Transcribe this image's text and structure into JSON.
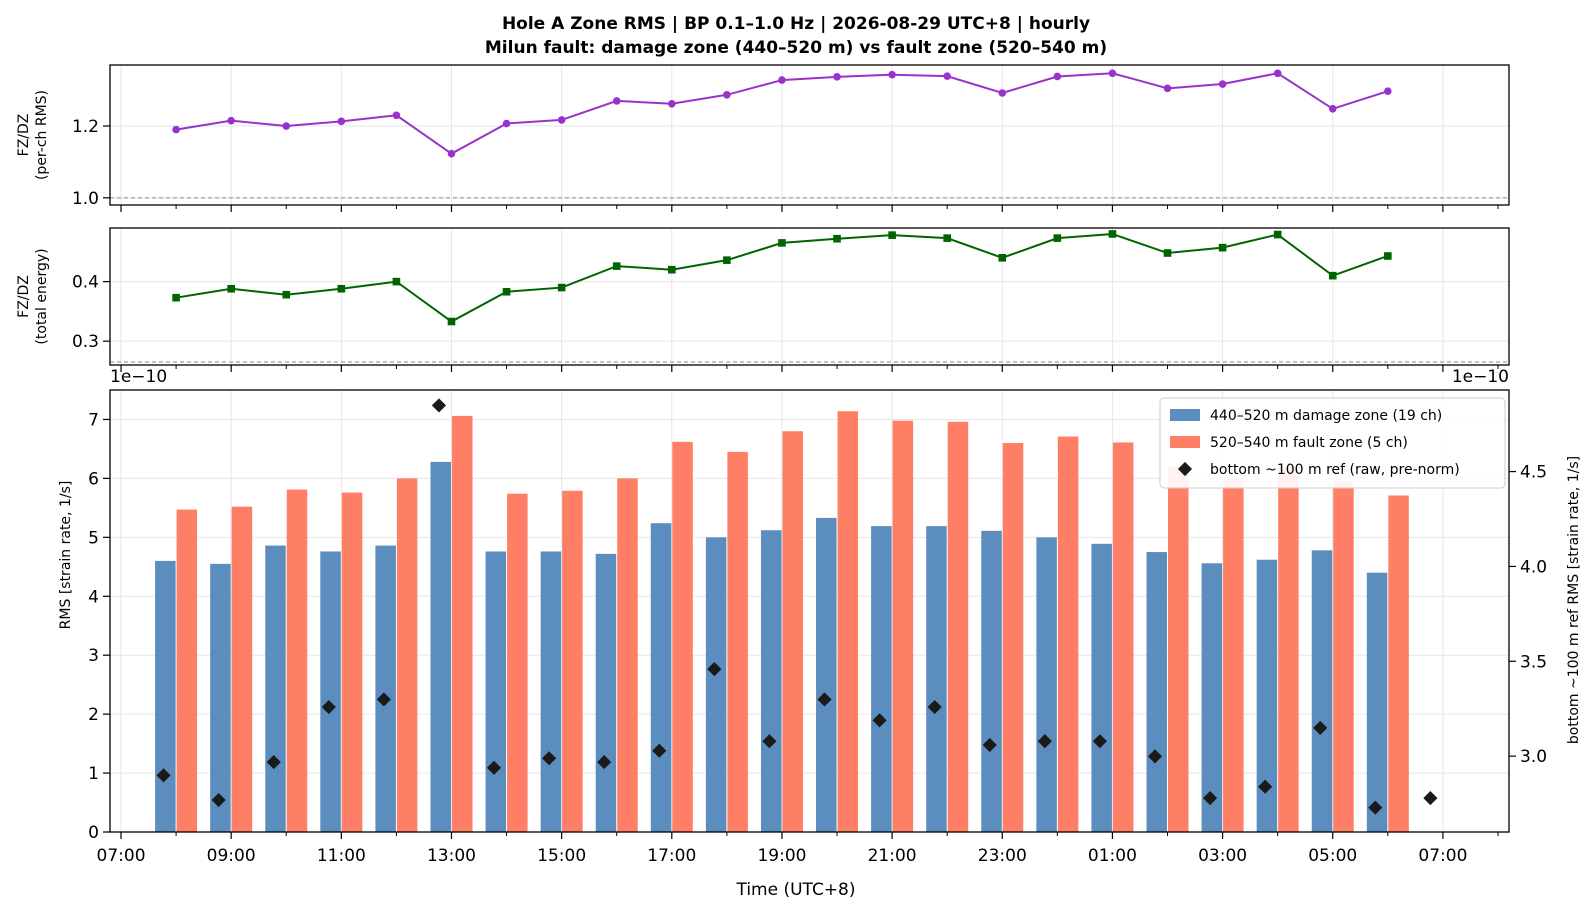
{
  "title_line1": "Hole A Zone RMS  |  BP 0.1–1.0 Hz  |  2026-08-29 UTC+8  |  hourly",
  "title_line2": "Milun fault: damage zone (440–520 m) vs fault zone (520–540 m)",
  "chart_data": [
    {
      "type": "line",
      "ylabel": [
        "FZ/DZ",
        "(per-ch RMS)"
      ],
      "x_hours": [
        8,
        9,
        10,
        11,
        12,
        13,
        14,
        15,
        16,
        17,
        18,
        19,
        20,
        21,
        22,
        23,
        24,
        25,
        26,
        27,
        28,
        29,
        30
      ],
      "values": [
        1.19,
        1.215,
        1.2,
        1.213,
        1.23,
        1.123,
        1.207,
        1.217,
        1.27,
        1.262,
        1.287,
        1.328,
        1.337,
        1.343,
        1.339,
        1.292,
        1.338,
        1.347,
        1.305,
        1.317,
        1.347,
        1.248,
        1.297
      ],
      "ylim": [
        0.98,
        1.37
      ],
      "yticks": [
        1.0,
        1.2
      ],
      "yticks_labels": [
        "1.0",
        "1.2"
      ],
      "reference_line": 1.0,
      "color": "#9932CC",
      "marker": "circle",
      "grid": true
    },
    {
      "type": "line",
      "ylabel": [
        "FZ/DZ",
        "(total energy)"
      ],
      "x_hours": [
        8,
        9,
        10,
        11,
        12,
        13,
        14,
        15,
        16,
        17,
        18,
        19,
        20,
        21,
        22,
        23,
        24,
        25,
        26,
        27,
        28,
        29,
        30
      ],
      "values": [
        0.373,
        0.388,
        0.378,
        0.388,
        0.4,
        0.333,
        0.383,
        0.39,
        0.426,
        0.42,
        0.436,
        0.465,
        0.472,
        0.478,
        0.473,
        0.44,
        0.473,
        0.48,
        0.448,
        0.457,
        0.479,
        0.41,
        0.443
      ],
      "ylim": [
        0.26,
        0.49
      ],
      "yticks": [
        0.3,
        0.4
      ],
      "yticks_labels": [
        "0.3",
        "0.4"
      ],
      "reference_line": 0.265,
      "color": "#006400",
      "marker": "square",
      "grid": true
    },
    {
      "type": "bar",
      "xlabel": "Time (UTC+8)",
      "ylabel": "RMS  [strain rate, 1/s]",
      "ylabel_right": "bottom ~100 m ref RMS  [strain rate, 1/s]",
      "offset_label_left": "1e−10",
      "offset_label_right": "1e−10",
      "x_hours": [
        8,
        9,
        10,
        11,
        12,
        13,
        14,
        15,
        16,
        17,
        18,
        19,
        20,
        21,
        22,
        23,
        24,
        25,
        26,
        27,
        28,
        29,
        30
      ],
      "series": [
        {
          "name": "440–520 m  damage zone (19 ch)",
          "color": "#5B8DBE",
          "values": [
            4.6,
            4.55,
            4.86,
            4.76,
            4.86,
            6.28,
            4.76,
            4.76,
            4.72,
            5.24,
            5.0,
            5.12,
            5.33,
            5.19,
            5.19,
            5.11,
            5.0,
            4.89,
            4.75,
            4.56,
            4.62,
            4.78,
            4.4
          ]
        },
        {
          "name": "520–540 m  fault zone (5 ch)",
          "color": "#FF7F66",
          "values": [
            5.47,
            5.52,
            5.81,
            5.76,
            6.0,
            7.06,
            5.74,
            5.79,
            6.0,
            6.62,
            6.45,
            6.8,
            7.14,
            6.98,
            6.96,
            6.6,
            6.71,
            6.61,
            6.2,
            6.0,
            6.2,
            5.95,
            5.71
          ]
        },
        {
          "name": "bottom ~100 m ref (raw, pre-norm)",
          "color": "#1A1A1A",
          "axis": "right",
          "x_hours": [
            8,
            9,
            10,
            11,
            12,
            13,
            14,
            15,
            16,
            17,
            18,
            19,
            20,
            21,
            22,
            23,
            24,
            25,
            26,
            27,
            28,
            29,
            30,
            31
          ],
          "values": [
            2.88,
            2.75,
            2.95,
            3.24,
            3.28,
            4.83,
            2.92,
            2.97,
            2.95,
            3.01,
            3.44,
            3.06,
            3.28,
            3.17,
            3.24,
            3.04,
            3.06,
            3.06,
            2.98,
            2.76,
            2.82,
            3.13,
            2.71,
            2.76
          ]
        }
      ],
      "ylim": [
        0,
        7.5
      ],
      "yticks": [
        0,
        1,
        2,
        3,
        4,
        5,
        6,
        7
      ],
      "ylim_right": [
        2.6,
        4.93
      ],
      "yticks_right": [
        "3.0",
        "3.5",
        "4.0",
        "4.5"
      ],
      "xlim_hours": [
        6.8,
        32.2
      ],
      "xticks_hours": [
        7,
        9,
        11,
        13,
        15,
        17,
        19,
        21,
        23,
        25,
        27,
        29,
        31
      ],
      "xtick_labels": [
        "07:00",
        "09:00",
        "11:00",
        "13:00",
        "15:00",
        "17:00",
        "19:00",
        "21:00",
        "23:00",
        "01:00",
        "03:00",
        "05:00",
        "07:00"
      ],
      "legend_position": "top-right",
      "grid": true
    }
  ]
}
